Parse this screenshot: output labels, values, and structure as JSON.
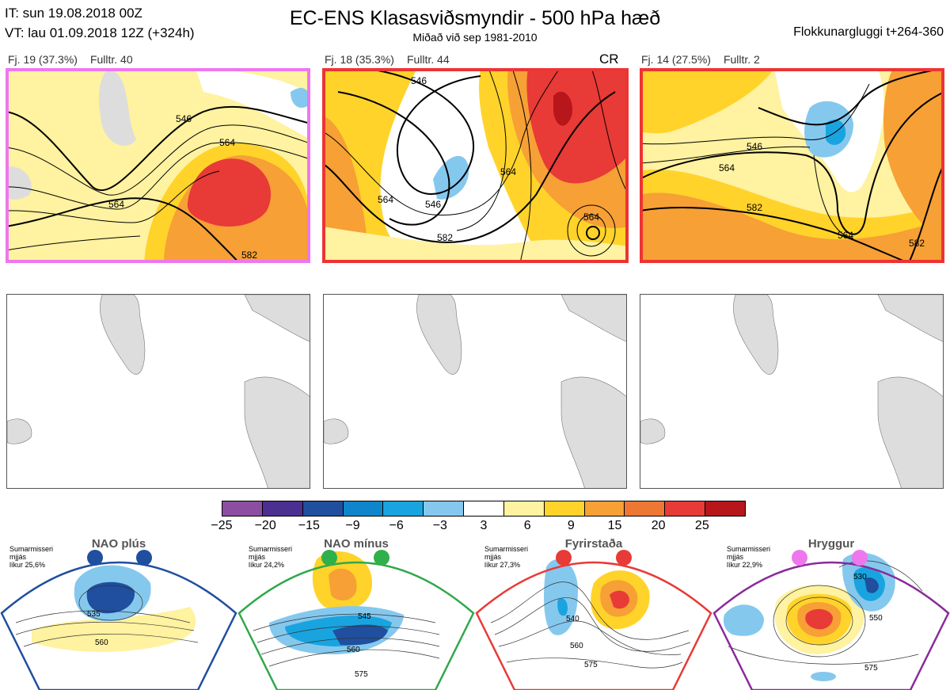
{
  "header": {
    "it_line": "IT: sun 19.08.2018 00Z",
    "vt_line": "VT: lau 01.09.2018 12Z  (+324h)",
    "title": "EC-ENS Klasasviðsmyndir - 500 hPa hæð",
    "subtitle": "Miðað við sep 1981-2010",
    "window_label": "Flokkunargluggi t+264-360"
  },
  "panels": [
    {
      "cluster": "Fj. 19 (37.3%)",
      "members": "Fulltr. 40",
      "regime_tag": "",
      "border_color": "#ee77ee",
      "contour_labels": [
        "546",
        "564",
        "564",
        "582"
      ]
    },
    {
      "cluster": "Fj. 18 (35.3%)",
      "members": "Fulltr. 44",
      "regime_tag": "CR",
      "border_color": "#ee3333",
      "contour_labels": [
        "546",
        "546",
        "564",
        "564",
        "564",
        "582"
      ]
    },
    {
      "cluster": "Fj. 14 (27.5%)",
      "members": "Fulltr. 2",
      "regime_tag": "",
      "border_color": "#ee3333",
      "contour_labels": [
        "546",
        "564",
        "564",
        "582",
        "582"
      ]
    }
  ],
  "colorbar": {
    "colors": [
      "#8b4ea0",
      "#4b2f91",
      "#1f4f9e",
      "#0f86cc",
      "#19a4e0",
      "#85c8ee",
      "#ffffff",
      "#fff2a0",
      "#ffd32a",
      "#f6a035",
      "#ee7733",
      "#e83a36",
      "#b7161b"
    ],
    "ticks": [
      "−25",
      "−20",
      "−15",
      "−9",
      "−6",
      "−3",
      "3",
      "6",
      "9",
      "15",
      "20",
      "25"
    ]
  },
  "regimes": [
    {
      "name": "NAO plús",
      "season": "Sumarmisseri",
      "smoothing": "mjjás",
      "probability": "líkur 25,6%",
      "frame_color": "#1f4f9e",
      "dot_color": "#1f4f9e",
      "contour_labels": [
        "535",
        "560"
      ]
    },
    {
      "name": "NAO mínus",
      "season": "Sumarmisseri",
      "smoothing": "mjjás",
      "probability": "líkur 24,2%",
      "frame_color": "#2fa84a",
      "dot_color": "#2fb04a",
      "contour_labels": [
        "545",
        "560",
        "575"
      ]
    },
    {
      "name": "Fyrirstaða",
      "season": "Sumarmisseri",
      "smoothing": "mjjás",
      "probability": "líkur 27,3%",
      "frame_color": "#e83a36",
      "dot_color": "#e83a36",
      "contour_labels": [
        "540",
        "560",
        "575"
      ]
    },
    {
      "name": "Hryggur",
      "season": "Sumarmisseri",
      "smoothing": "mjjás",
      "probability": "líkur 22,9%",
      "frame_color": "#8a2a9a",
      "dot_color": "#ee77ee",
      "contour_labels": [
        "530",
        "550",
        "575"
      ]
    }
  ]
}
